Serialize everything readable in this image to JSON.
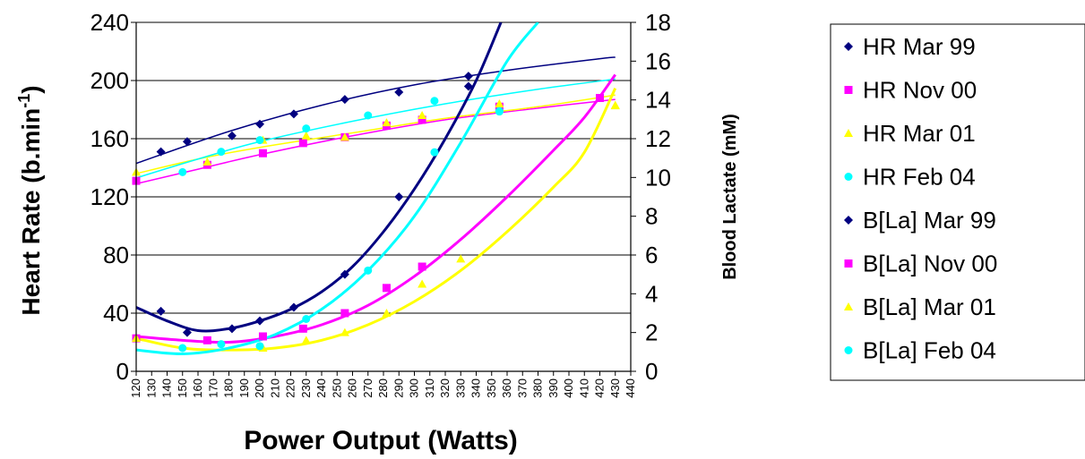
{
  "chart_data": {
    "type": "scatter",
    "xlabel": "Power Output (Watts)",
    "ylabel_left": {
      "main": "Heart Rate (b.min",
      "sup": "-1",
      "close": ")"
    },
    "ylabel_right": "Blood Lactate (mM)",
    "xlim": [
      120,
      440
    ],
    "x_ticks": [
      120,
      130,
      140,
      150,
      160,
      170,
      180,
      190,
      200,
      210,
      220,
      230,
      240,
      250,
      260,
      270,
      280,
      290,
      300,
      310,
      320,
      330,
      340,
      350,
      360,
      370,
      380,
      390,
      400,
      410,
      420,
      430,
      440
    ],
    "x_tick_labels": [
      "120",
      "130",
      "140",
      "150",
      "160",
      "170",
      "180",
      "190",
      "200",
      "210",
      "220",
      "230",
      "240",
      "250",
      "260",
      "270",
      "280",
      "290",
      "300",
      "310",
      "320",
      "330",
      "340",
      "350",
      "360",
      "370",
      "380",
      "390",
      "400",
      "410",
      "420",
      "430",
      "440"
    ],
    "ylim_left": [
      0,
      240
    ],
    "y_left_ticks": [
      0,
      40,
      80,
      120,
      160,
      200,
      240
    ],
    "y_left_tick_labels": [
      "0",
      "40",
      "80",
      "120",
      "160",
      "200",
      "240"
    ],
    "ylim_right": [
      0,
      18
    ],
    "y_right_ticks": [
      0,
      2,
      4,
      6,
      8,
      10,
      12,
      14,
      16,
      18
    ],
    "y_right_tick_labels": [
      "0",
      "2",
      "4",
      "6",
      "8",
      "10",
      "12",
      "14",
      "16",
      "18"
    ],
    "grid": "horizontal major gridlines",
    "legend_position": "right",
    "series": [
      {
        "name": "HR Mar 99",
        "axis": "left",
        "marker": "diamond",
        "color": "#000080",
        "points": [
          [
            136,
            151
          ],
          [
            153,
            158
          ],
          [
            182,
            162
          ],
          [
            200,
            170
          ],
          [
            222,
            177
          ],
          [
            255,
            187
          ],
          [
            290,
            192
          ],
          [
            335,
            203
          ]
        ],
        "fit": [
          [
            120,
            143
          ],
          [
            180,
            165
          ],
          [
            240,
            183
          ],
          [
            300,
            197
          ],
          [
            360,
            207
          ],
          [
            420,
            215
          ],
          [
            430,
            216
          ]
        ]
      },
      {
        "name": "HR Nov 00",
        "axis": "left",
        "marker": "square",
        "color": "#FF00FF",
        "points": [
          [
            120,
            131
          ],
          [
            166,
            142
          ],
          [
            202,
            150
          ],
          [
            228,
            157
          ],
          [
            255,
            161
          ],
          [
            282,
            169
          ],
          [
            305,
            173
          ],
          [
            355,
            182
          ],
          [
            420,
            188
          ]
        ],
        "fit": [
          [
            120,
            129
          ],
          [
            160,
            139
          ],
          [
            200,
            149
          ],
          [
            260,
            162
          ],
          [
            320,
            173
          ],
          [
            380,
            181
          ],
          [
            430,
            187
          ]
        ]
      },
      {
        "name": "HR Mar 01",
        "axis": "left",
        "marker": "triangle",
        "color": "#FFFF00",
        "points": [
          [
            120,
            137
          ],
          [
            166,
            144
          ],
          [
            202,
            159
          ],
          [
            230,
            162
          ],
          [
            255,
            161
          ],
          [
            282,
            171
          ],
          [
            305,
            176
          ],
          [
            355,
            184
          ],
          [
            430,
            183
          ]
        ],
        "fit": [
          [
            120,
            136
          ],
          [
            160,
            146
          ],
          [
            200,
            154
          ],
          [
            260,
            164
          ],
          [
            320,
            174
          ],
          [
            380,
            182
          ],
          [
            430,
            190
          ]
        ]
      },
      {
        "name": "HR Feb 04",
        "axis": "left",
        "marker": "circle",
        "color": "#00FFFF",
        "points": [
          [
            150,
            137
          ],
          [
            175,
            151
          ],
          [
            200,
            159
          ],
          [
            230,
            167
          ],
          [
            270,
            176
          ],
          [
            313,
            186
          ],
          [
            355,
            179
          ]
        ],
        "fit": [
          [
            120,
            133
          ],
          [
            160,
            146
          ],
          [
            200,
            158
          ],
          [
            260,
            172
          ],
          [
            320,
            184
          ],
          [
            380,
            194
          ],
          [
            430,
            201
          ]
        ]
      },
      {
        "name": "B[La] Mar 99",
        "axis": "right",
        "marker": "diamond",
        "color": "#000080",
        "points": [
          [
            136,
            3.1
          ],
          [
            153,
            2.0
          ],
          [
            182,
            2.2
          ],
          [
            200,
            2.6
          ],
          [
            222,
            3.3
          ],
          [
            255,
            5.0
          ],
          [
            290,
            9.0
          ],
          [
            335,
            14.7
          ]
        ],
        "fit": [
          [
            120,
            3.3
          ],
          [
            140,
            2.6
          ],
          [
            160,
            2.1
          ],
          [
            180,
            2.2
          ],
          [
            200,
            2.6
          ],
          [
            220,
            3.2
          ],
          [
            240,
            4.1
          ],
          [
            260,
            5.4
          ],
          [
            280,
            7.2
          ],
          [
            300,
            9.4
          ],
          [
            320,
            12.0
          ],
          [
            340,
            15.0
          ],
          [
            356,
            18.0
          ]
        ]
      },
      {
        "name": "B[La] Nov 00",
        "axis": "right",
        "marker": "square",
        "color": "#FF00FF",
        "points": [
          [
            120,
            1.7
          ],
          [
            166,
            1.6
          ],
          [
            202,
            1.8
          ],
          [
            228,
            2.2
          ],
          [
            255,
            3.0
          ],
          [
            282,
            4.3
          ],
          [
            305,
            5.4
          ],
          [
            420,
            14.1
          ]
        ],
        "fit": [
          [
            120,
            1.8
          ],
          [
            150,
            1.6
          ],
          [
            180,
            1.5
          ],
          [
            210,
            1.8
          ],
          [
            240,
            2.4
          ],
          [
            270,
            3.4
          ],
          [
            300,
            4.9
          ],
          [
            330,
            6.8
          ],
          [
            360,
            9.0
          ],
          [
            390,
            11.4
          ],
          [
            410,
            13.1
          ],
          [
            430,
            15.3
          ]
        ]
      },
      {
        "name": "B[La] Mar 01",
        "axis": "right",
        "marker": "triangle",
        "color": "#FFFF00",
        "points": [
          [
            120,
            1.7
          ],
          [
            202,
            1.2
          ],
          [
            230,
            1.6
          ],
          [
            255,
            2.0
          ],
          [
            282,
            3.0
          ],
          [
            305,
            4.5
          ],
          [
            330,
            5.8
          ],
          [
            430,
            13.7
          ]
        ],
        "fit": [
          [
            120,
            1.7
          ],
          [
            150,
            1.2
          ],
          [
            180,
            1.1
          ],
          [
            210,
            1.2
          ],
          [
            240,
            1.6
          ],
          [
            270,
            2.4
          ],
          [
            300,
            3.6
          ],
          [
            330,
            5.2
          ],
          [
            360,
            7.2
          ],
          [
            390,
            9.5
          ],
          [
            410,
            11.3
          ],
          [
            430,
            14.6
          ]
        ]
      },
      {
        "name": "B[La] Feb 04",
        "axis": "right",
        "marker": "circle",
        "color": "#00FFFF",
        "points": [
          [
            150,
            1.2
          ],
          [
            175,
            1.4
          ],
          [
            200,
            1.3
          ],
          [
            230,
            2.7
          ],
          [
            270,
            5.2
          ],
          [
            313,
            11.3
          ],
          [
            355,
            13.4
          ]
        ],
        "fit": [
          [
            120,
            1.1
          ],
          [
            150,
            0.9
          ],
          [
            180,
            1.2
          ],
          [
            210,
            1.9
          ],
          [
            240,
            3.2
          ],
          [
            270,
            5.2
          ],
          [
            300,
            8.0
          ],
          [
            330,
            11.8
          ],
          [
            360,
            16.0
          ],
          [
            380,
            18.0
          ]
        ]
      }
    ]
  }
}
